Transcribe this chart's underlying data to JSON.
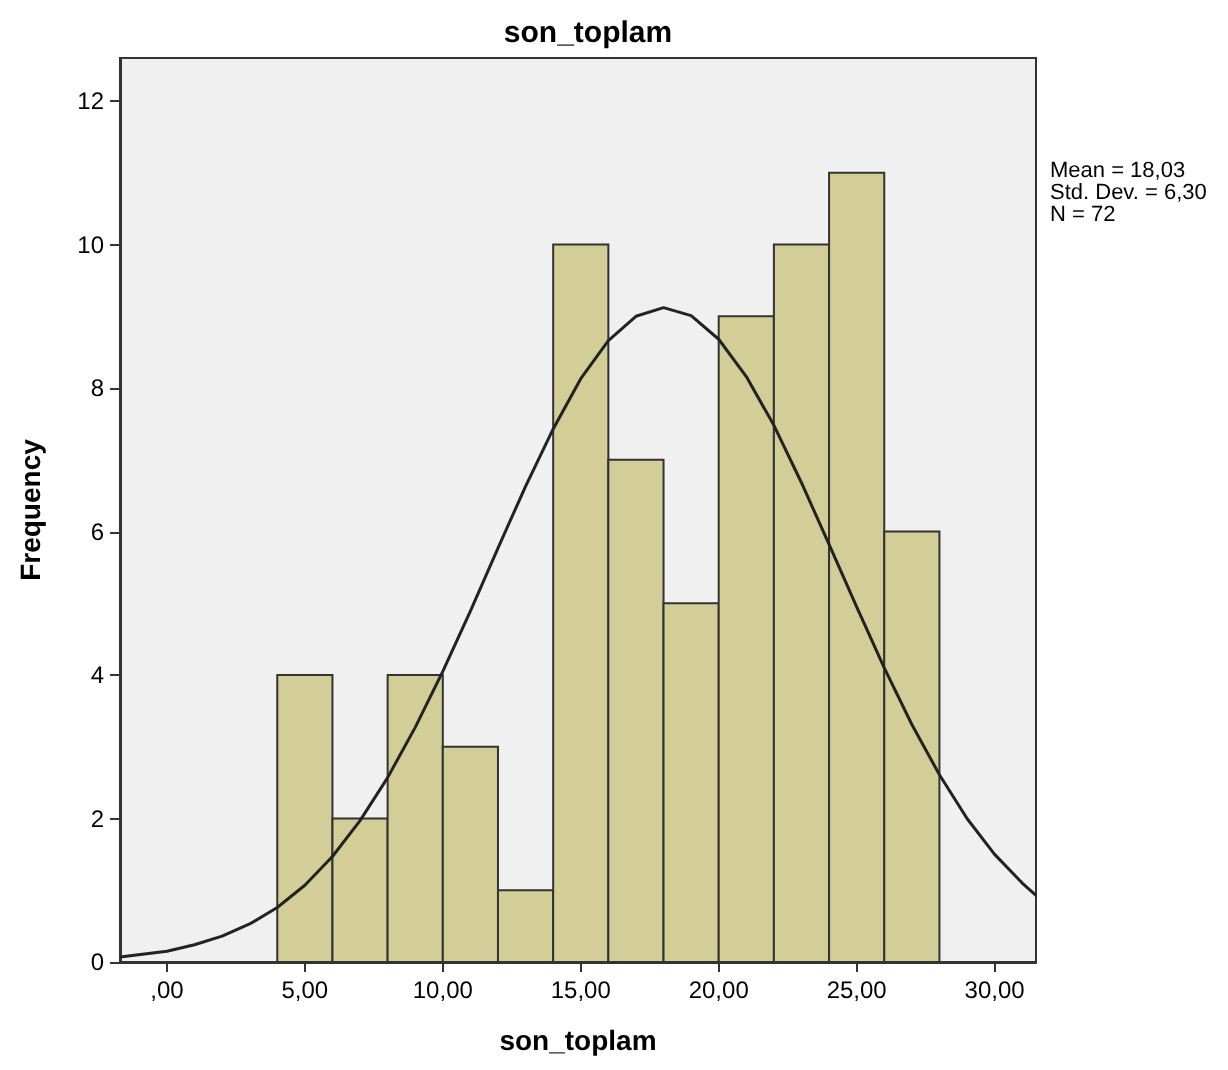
{
  "chart_data": {
    "type": "histogram",
    "title": "son_toplam",
    "xlabel": "son_toplam",
    "ylabel": "Frequency",
    "annotations": [
      "Mean = 18,03",
      "Std. Dev. = 6,30",
      "N = 72"
    ],
    "bins": [
      4,
      6,
      8,
      10,
      12,
      14,
      16,
      18,
      20,
      22,
      24,
      26,
      28
    ],
    "values": [
      4,
      2,
      4,
      3,
      1,
      10,
      7,
      5,
      9,
      10,
      11,
      6
    ],
    "color": "#d3ce97",
    "series": [
      {
        "type": "line",
        "color": "#222222",
        "x": [
          -1.7,
          0,
          1,
          2,
          3,
          4,
          5,
          6,
          7,
          8,
          9,
          10,
          11,
          12,
          13,
          14,
          15,
          16,
          17,
          18,
          19,
          20,
          21,
          22,
          23,
          24,
          25,
          26,
          27,
          28,
          29,
          30,
          31,
          31.5
        ],
        "values": [
          0.07,
          0.15,
          0.24,
          0.36,
          0.53,
          0.76,
          1.07,
          1.47,
          1.97,
          2.57,
          3.27,
          4.05,
          4.89,
          5.77,
          6.63,
          7.43,
          8.13,
          8.66,
          9.0,
          9.12,
          9.01,
          8.68,
          8.16,
          7.48,
          6.68,
          5.82,
          4.95,
          4.1,
          3.31,
          2.61,
          2.0,
          1.5,
          1.1,
          0.93
        ]
      }
    ],
    "xlim": [
      -1.7,
      31.5
    ],
    "xticks": [
      {
        "value": 0,
        "label": ",00"
      },
      {
        "value": 5,
        "label": "5,00"
      },
      {
        "value": 10,
        "label": "10,00"
      },
      {
        "value": 15,
        "label": "15,00"
      },
      {
        "value": 20,
        "label": "20,00"
      },
      {
        "value": 25,
        "label": "25,00"
      },
      {
        "value": 30,
        "label": "30,00"
      }
    ],
    "ylim": [
      0,
      12.6
    ],
    "yticks": [
      0,
      2,
      4,
      6,
      8,
      10,
      12
    ],
    "grid": false,
    "marker": "none",
    "line_style": "solid"
  }
}
